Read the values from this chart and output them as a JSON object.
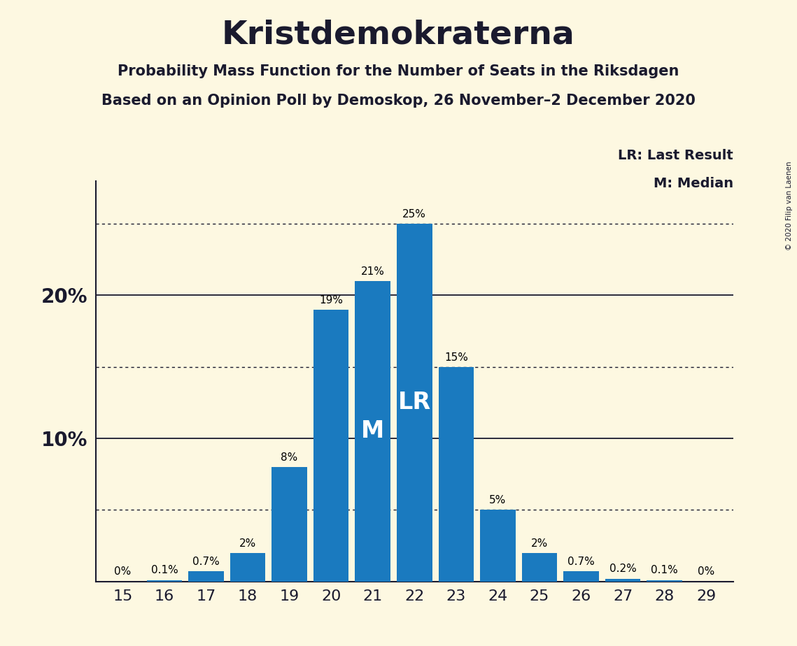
{
  "title": "Kristdemokraterna",
  "subtitle1": "Probability Mass Function for the Number of Seats in the Riksdagen",
  "subtitle2": "Based on an Opinion Poll by Demoskop, 26 November–2 December 2020",
  "copyright": "© 2020 Filip van Laenen",
  "seats": [
    15,
    16,
    17,
    18,
    19,
    20,
    21,
    22,
    23,
    24,
    25,
    26,
    27,
    28,
    29
  ],
  "probabilities": [
    0.0,
    0.1,
    0.7,
    2.0,
    8.0,
    19.0,
    21.0,
    25.0,
    15.0,
    5.0,
    2.0,
    0.7,
    0.2,
    0.1,
    0.0
  ],
  "labels": [
    "0%",
    "0.1%",
    "0.7%",
    "2%",
    "8%",
    "19%",
    "21%",
    "25%",
    "15%",
    "5%",
    "2%",
    "0.7%",
    "0.2%",
    "0.1%",
    "0%"
  ],
  "bar_color": "#1a7abf",
  "background_color": "#fdf8e1",
  "text_color": "#1a1a2e",
  "median_seat": 21,
  "last_result_seat": 22,
  "median_label": "M",
  "last_result_label": "LR",
  "legend_lr": "LR: Last Result",
  "legend_m": "M: Median",
  "dotted_lines": [
    5.0,
    15.0,
    25.0
  ],
  "solid_lines": [
    10.0,
    20.0
  ],
  "ylim": [
    0,
    28
  ],
  "ytick_positions": [
    10,
    20
  ],
  "ytick_labels": [
    "10%",
    "20%"
  ]
}
